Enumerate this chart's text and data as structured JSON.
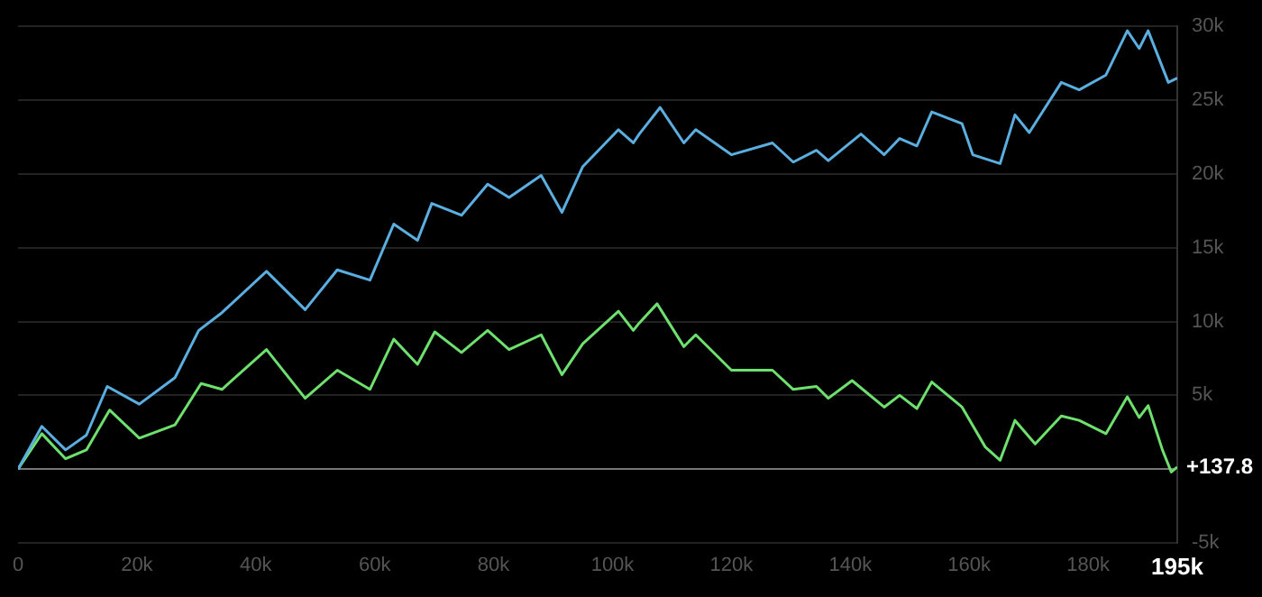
{
  "chart_data": {
    "type": "line",
    "xlim": [
      0,
      195000
    ],
    "xticks": [
      0,
      {
        "value": 20000,
        "label": "20k"
      },
      {
        "value": 40000,
        "label": "40k"
      },
      {
        "value": 60000,
        "label": "60k"
      },
      {
        "value": 80000,
        "label": "80k"
      },
      {
        "value": 100000,
        "label": "100k"
      },
      {
        "value": 120000,
        "label": "120k"
      },
      {
        "value": 140000,
        "label": "140k"
      },
      {
        "value": 160000,
        "label": "160k"
      },
      {
        "value": 180000,
        "label": "180k"
      },
      {
        "value": 195000,
        "label": "195k"
      }
    ],
    "ylim": [
      -5000,
      30000
    ],
    "yticks": [
      {
        "value": -5000,
        "label": "-5k"
      },
      {
        "value": 0,
        "label": null
      },
      {
        "value": 5000,
        "label": "5k"
      },
      {
        "value": 10000,
        "label": "10k"
      },
      {
        "value": 15000,
        "label": "15k"
      },
      {
        "value": 20000,
        "label": "20k"
      },
      {
        "value": 25000,
        "label": "25k"
      },
      {
        "value": 30000,
        "label": "30k"
      }
    ],
    "grid": "y",
    "legend": false,
    "marker": "none",
    "line_style": "solid",
    "annotations": [
      {
        "text": "+137.8",
        "x": 195000,
        "y": 137.8
      }
    ],
    "series": [
      {
        "color": "#5aaee0",
        "x": [
          0,
          4000,
          8000,
          11500,
          15000,
          20400,
          26400,
          30400,
          34300,
          41800,
          48300,
          53700,
          59200,
          63200,
          67200,
          69600,
          74600,
          79000,
          82600,
          88000,
          91500,
          95000,
          101000,
          103500,
          104500,
          108000,
          112000,
          114000,
          120000,
          126900,
          130400,
          134300,
          136300,
          141800,
          145700,
          148300,
          151200,
          153700,
          158800,
          160600,
          165200,
          167700,
          170100,
          175500,
          178500,
          183000,
          186600,
          188600,
          190100,
          193500,
          195000
        ],
        "values": [
          0,
          2900,
          1300,
          2300,
          5600,
          4400,
          6200,
          9400,
          10600,
          13400,
          10800,
          13500,
          12800,
          16600,
          15500,
          18000,
          17200,
          19300,
          18400,
          19900,
          17400,
          20500,
          23000,
          22100,
          22700,
          24500,
          22100,
          23000,
          21300,
          22100,
          20800,
          21600,
          20900,
          22700,
          21300,
          22400,
          21900,
          24200,
          23400,
          21300,
          20700,
          24000,
          22800,
          26200,
          25700,
          26700,
          29700,
          28500,
          29700,
          26200,
          26500
        ]
      },
      {
        "color": "#6de06d",
        "x": [
          0,
          4000,
          8000,
          11500,
          15400,
          20400,
          26400,
          30800,
          34300,
          41800,
          48300,
          53700,
          59200,
          63200,
          67200,
          70100,
          74600,
          79000,
          82600,
          88000,
          91500,
          95000,
          101000,
          103500,
          104500,
          107500,
          112000,
          114000,
          120000,
          126900,
          130400,
          134300,
          136300,
          140300,
          145700,
          148300,
          151200,
          153700,
          158800,
          162700,
          165200,
          167700,
          171100,
          175500,
          178500,
          183000,
          186600,
          188600,
          190100,
          192500,
          194000,
          195000
        ],
        "values": [
          0,
          2400,
          700,
          1300,
          4000,
          2100,
          3000,
          5800,
          5400,
          8100,
          4800,
          6700,
          5400,
          8800,
          7100,
          9300,
          7900,
          9400,
          8100,
          9100,
          6400,
          8500,
          10700,
          9400,
          9900,
          11200,
          8300,
          9100,
          6700,
          6700,
          5400,
          5600,
          4800,
          6000,
          4200,
          5000,
          4100,
          5900,
          4200,
          1500,
          600,
          3300,
          1700,
          3600,
          3300,
          2400,
          4900,
          3500,
          4300,
          1300,
          -200,
          137.8
        ]
      }
    ]
  }
}
